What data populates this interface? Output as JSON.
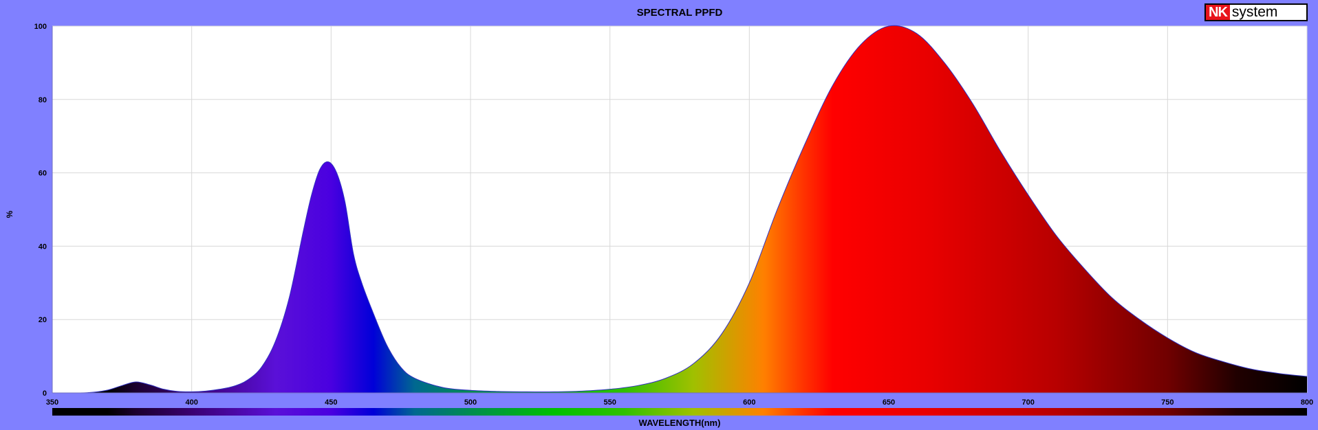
{
  "chart_data": {
    "type": "area",
    "title": "SPECTRAL PPFD",
    "xlabel": "WAVELENGTH(nm)",
    "ylabel": "%",
    "xlim": [
      350,
      800
    ],
    "ylim": [
      0,
      100
    ],
    "x_ticks": [
      "350",
      "400",
      "450",
      "500",
      "550",
      "600",
      "650",
      "700",
      "750",
      "800"
    ],
    "y_ticks": [
      "0",
      "20",
      "40",
      "60",
      "80",
      "100"
    ],
    "grid": true,
    "x": [
      350,
      360,
      365,
      370,
      375,
      380,
      385,
      390,
      395,
      400,
      405,
      410,
      415,
      420,
      425,
      430,
      435,
      440,
      443,
      446,
      449,
      452,
      455,
      458,
      461,
      465,
      470,
      475,
      480,
      490,
      500,
      510,
      520,
      530,
      540,
      550,
      560,
      570,
      580,
      590,
      600,
      610,
      620,
      630,
      640,
      650,
      660,
      670,
      680,
      690,
      700,
      710,
      720,
      730,
      740,
      750,
      760,
      770,
      780,
      790,
      800
    ],
    "y": [
      0,
      0,
      0.2,
      0.8,
      2,
      3,
      2.2,
      1,
      0.4,
      0.3,
      0.5,
      1,
      1.8,
      3.5,
      7,
      14,
      26,
      44,
      54,
      61,
      63,
      60,
      52,
      38,
      30,
      22,
      13,
      7,
      4,
      1.5,
      0.7,
      0.4,
      0.3,
      0.3,
      0.5,
      1,
      2,
      4,
      8,
      16,
      30,
      50,
      68,
      84,
      95,
      100,
      98,
      90,
      79,
      66,
      54,
      43,
      34,
      26,
      20,
      15,
      11,
      8.5,
      6.5,
      5.3,
      4.5
    ]
  },
  "logo": {
    "mark": "NK",
    "text": "system"
  },
  "colors": {
    "background": "#8080ff",
    "plot": "#ffffff",
    "grid": "#d8d8d8",
    "outline": "#3030c0"
  }
}
